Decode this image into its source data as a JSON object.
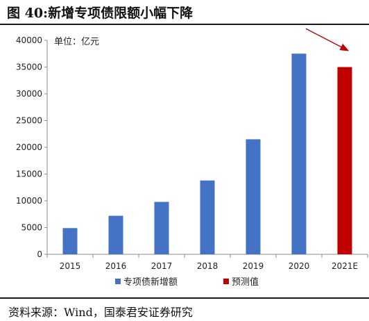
{
  "title": "图 40:新增专项债限额小幅下降",
  "source": "资料来源：Wind，国泰君安证券研究",
  "colors": {
    "actual": "#4472C4",
    "forecast": "#C00000",
    "arrow": "#C00000",
    "axis": "#8C8C8C"
  },
  "chart_data": {
    "type": "bar",
    "unit_label": "单位：亿元",
    "categories": [
      "2015",
      "2016",
      "2017",
      "2018",
      "2019",
      "2020",
      "2021E"
    ],
    "series": [
      {
        "name": "专项债新增额",
        "values": [
          4900,
          7200,
          9800,
          13800,
          21500,
          37500,
          null
        ]
      },
      {
        "name": "预测值",
        "values": [
          null,
          null,
          null,
          null,
          null,
          null,
          35000
        ]
      }
    ],
    "ylim": [
      0,
      40000
    ],
    "yticks": [
      0,
      5000,
      10000,
      15000,
      20000,
      25000,
      30000,
      35000,
      40000
    ],
    "grid": false,
    "legend_position": "bottom",
    "annotation": {
      "type": "arrow",
      "from": "2020",
      "to": "2021E"
    }
  }
}
